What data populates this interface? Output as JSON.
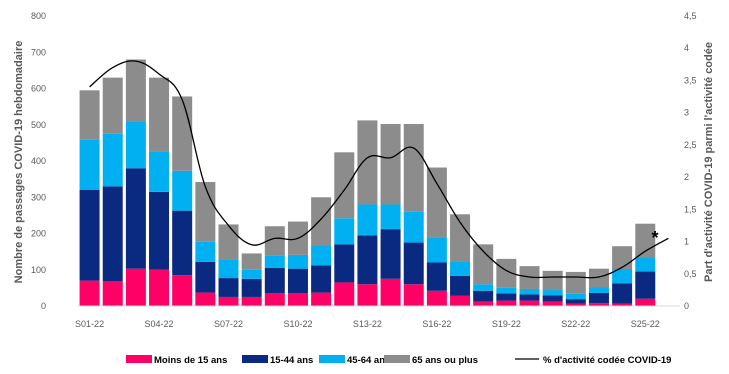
{
  "chart_data": {
    "type": "bar",
    "stacked": true,
    "categories": [
      "S01-22",
      "S02-22",
      "S03-22",
      "S04-22",
      "S05-22",
      "S06-22",
      "S07-22",
      "S08-22",
      "S09-22",
      "S10-22",
      "S11-22",
      "S12-22",
      "S13-22",
      "S14-22",
      "S15-22",
      "S16-22",
      "S17-22",
      "S18-22",
      "S19-22",
      "S20-22",
      "S21-22",
      "S22-22",
      "S23-22",
      "S24-22",
      "S25-22",
      "S26-22"
    ],
    "x_tick_labels": [
      "S01-22",
      "",
      "",
      "S04-22",
      "",
      "",
      "S07-22",
      "",
      "",
      "S10-22",
      "",
      "",
      "S13-22",
      "",
      "",
      "S16-22",
      "",
      "",
      "S19-22",
      "",
      "",
      "S22-22",
      "",
      "",
      "S25-22",
      ""
    ],
    "series": [
      {
        "name": "Moins de 15 ans",
        "color": "#ff0066",
        "values": [
          70,
          68,
          103,
          100,
          85,
          37,
          25,
          25,
          35,
          35,
          37,
          65,
          60,
          75,
          60,
          42,
          28,
          12,
          15,
          15,
          12,
          7,
          8,
          7,
          20,
          0
        ]
      },
      {
        "name": "15-44 ans",
        "color": "#0a2a82",
        "values": [
          250,
          262,
          277,
          215,
          178,
          85,
          52,
          50,
          70,
          68,
          75,
          105,
          135,
          137,
          115,
          78,
          55,
          30,
          20,
          17,
          17,
          12,
          28,
          55,
          75,
          0
        ]
      },
      {
        "name": "45-64 ans",
        "color": "#00b0f0",
        "values": [
          140,
          145,
          130,
          110,
          110,
          55,
          50,
          25,
          35,
          38,
          55,
          72,
          85,
          68,
          85,
          70,
          40,
          18,
          15,
          15,
          15,
          15,
          15,
          40,
          40,
          0
        ]
      },
      {
        "name": "65 ans ou plus",
        "color": "#8c8c8c",
        "values": [
          135,
          155,
          170,
          205,
          205,
          165,
          98,
          45,
          80,
          92,
          133,
          182,
          232,
          222,
          242,
          192,
          130,
          110,
          80,
          63,
          53,
          60,
          52,
          63,
          92,
          0
        ]
      }
    ],
    "line": {
      "name": "% d'activité codée COVID-19",
      "color": "#000000",
      "axis": "right",
      "values": [
        3.4,
        3.7,
        3.8,
        3.6,
        3.2,
        1.85,
        1.25,
        0.95,
        1.05,
        1.05,
        1.35,
        1.8,
        2.3,
        2.3,
        2.45,
        1.9,
        1.3,
        0.85,
        0.55,
        0.45,
        0.45,
        0.45,
        0.45,
        0.6,
        0.85,
        1.05
      ]
    },
    "ylabel": "Nombre de passages COVID-19 hebdomadaire",
    "ylabel_right": "Part d'activité COVID-19 parmi l'activité codée",
    "ylim": [
      0,
      800
    ],
    "ylim_right": [
      0,
      4.5
    ],
    "y_ticks": [
      "0",
      "100",
      "200",
      "300",
      "400",
      "500",
      "600",
      "700",
      "800"
    ],
    "y_ticks_right": [
      "0",
      "0,5",
      "1",
      "1,5",
      "2",
      "2,5",
      "3",
      "3,5",
      "4",
      "4,5"
    ],
    "annotation": "*",
    "legend_position": "bottom",
    "grid": false
  }
}
